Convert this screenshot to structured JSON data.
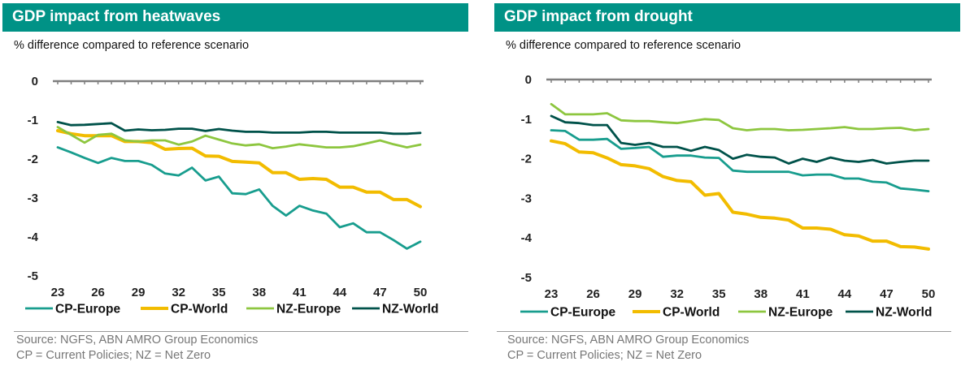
{
  "colors": {
    "title_bar": "#009286",
    "CP-Europe": "#189D8E",
    "CP-World": "#F2BC00",
    "NZ-Europe": "#8DC63F",
    "NZ-World": "#00524A"
  },
  "source_line": "Source: NGFS, ABN AMRO Group Economics",
  "abbrev_line": "CP = Current Policies; NZ = Net Zero",
  "chart_data": [
    {
      "type": "line",
      "title": "GDP impact from heatwaves",
      "subtitle": "% difference compared to reference scenario",
      "x": [
        23,
        24,
        25,
        26,
        27,
        28,
        29,
        30,
        31,
        32,
        33,
        34,
        35,
        36,
        37,
        38,
        39,
        40,
        41,
        42,
        43,
        44,
        45,
        46,
        47,
        48,
        49,
        50
      ],
      "x_ticks": [
        "23",
        "26",
        "29",
        "32",
        "35",
        "38",
        "41",
        "44",
        "47",
        "50"
      ],
      "y_ticks": [
        "0",
        "-1",
        "-2",
        "-3",
        "-4",
        "-5"
      ],
      "ylim": [
        -5,
        0
      ],
      "legend_position": "bottom",
      "series": [
        {
          "name": "CP-Europe",
          "values": [
            -1.7,
            -1.83,
            -1.97,
            -2.1,
            -1.97,
            -2.05,
            -2.05,
            -2.15,
            -2.37,
            -2.42,
            -2.22,
            -2.55,
            -2.45,
            -2.88,
            -2.9,
            -2.78,
            -3.2,
            -3.45,
            -3.2,
            -3.32,
            -3.4,
            -3.75,
            -3.65,
            -3.88,
            -3.88,
            -4.08,
            -4.3,
            -4.12
          ]
        },
        {
          "name": "CP-World",
          "values": [
            -1.27,
            -1.35,
            -1.4,
            -1.4,
            -1.4,
            -1.55,
            -1.55,
            -1.58,
            -1.75,
            -1.73,
            -1.72,
            -1.92,
            -1.93,
            -2.06,
            -2.08,
            -2.1,
            -2.35,
            -2.35,
            -2.52,
            -2.5,
            -2.52,
            -2.72,
            -2.72,
            -2.85,
            -2.85,
            -3.04,
            -3.04,
            -3.22
          ]
        },
        {
          "name": "NZ-Europe",
          "values": [
            -1.18,
            -1.38,
            -1.58,
            -1.38,
            -1.35,
            -1.52,
            -1.55,
            -1.52,
            -1.52,
            -1.63,
            -1.55,
            -1.4,
            -1.5,
            -1.6,
            -1.65,
            -1.62,
            -1.72,
            -1.68,
            -1.62,
            -1.66,
            -1.7,
            -1.7,
            -1.67,
            -1.6,
            -1.52,
            -1.62,
            -1.7,
            -1.63
          ]
        },
        {
          "name": "NZ-World",
          "values": [
            -1.05,
            -1.13,
            -1.12,
            -1.1,
            -1.08,
            -1.27,
            -1.24,
            -1.26,
            -1.25,
            -1.22,
            -1.22,
            -1.28,
            -1.23,
            -1.27,
            -1.3,
            -1.3,
            -1.32,
            -1.32,
            -1.32,
            -1.3,
            -1.3,
            -1.32,
            -1.32,
            -1.32,
            -1.32,
            -1.35,
            -1.35,
            -1.33
          ]
        }
      ]
    },
    {
      "type": "line",
      "title": "GDP impact from drought",
      "subtitle": "% difference compared to reference scenario",
      "x": [
        23,
        24,
        25,
        26,
        27,
        28,
        29,
        30,
        31,
        32,
        33,
        34,
        35,
        36,
        37,
        38,
        39,
        40,
        41,
        42,
        43,
        44,
        45,
        46,
        47,
        48,
        49,
        50
      ],
      "x_ticks": [
        "23",
        "26",
        "29",
        "32",
        "35",
        "38",
        "41",
        "44",
        "47",
        "50"
      ],
      "y_ticks": [
        "0",
        "-1",
        "-2",
        "-3",
        "-4",
        "-5"
      ],
      "ylim": [
        -5,
        0
      ],
      "legend_position": "bottom",
      "series": [
        {
          "name": "CP-Europe",
          "values": [
            -1.28,
            -1.3,
            -1.52,
            -1.52,
            -1.5,
            -1.75,
            -1.73,
            -1.7,
            -1.95,
            -1.92,
            -1.92,
            -1.97,
            -1.98,
            -2.3,
            -2.33,
            -2.33,
            -2.33,
            -2.33,
            -2.42,
            -2.4,
            -2.4,
            -2.5,
            -2.5,
            -2.58,
            -2.6,
            -2.75,
            -2.78,
            -2.82
          ]
        },
        {
          "name": "CP-World",
          "values": [
            -1.55,
            -1.62,
            -1.83,
            -1.85,
            -1.98,
            -2.15,
            -2.18,
            -2.25,
            -2.45,
            -2.55,
            -2.58,
            -2.92,
            -2.88,
            -3.35,
            -3.4,
            -3.48,
            -3.5,
            -3.55,
            -3.75,
            -3.75,
            -3.78,
            -3.92,
            -3.95,
            -4.08,
            -4.08,
            -4.22,
            -4.23,
            -4.28
          ]
        },
        {
          "name": "NZ-Europe",
          "values": [
            -0.62,
            -0.88,
            -0.88,
            -0.88,
            -0.85,
            -1.03,
            -1.05,
            -1.05,
            -1.08,
            -1.1,
            -1.05,
            -1.0,
            -1.02,
            -1.23,
            -1.28,
            -1.25,
            -1.25,
            -1.28,
            -1.27,
            -1.25,
            -1.23,
            -1.2,
            -1.25,
            -1.25,
            -1.23,
            -1.22,
            -1.28,
            -1.25
          ]
        },
        {
          "name": "NZ-World",
          "values": [
            -0.92,
            -1.08,
            -1.1,
            -1.15,
            -1.15,
            -1.6,
            -1.65,
            -1.6,
            -1.7,
            -1.7,
            -1.8,
            -1.7,
            -1.78,
            -2.0,
            -1.9,
            -1.95,
            -1.97,
            -2.12,
            -2.0,
            -2.08,
            -1.97,
            -2.05,
            -2.08,
            -2.03,
            -2.12,
            -2.08,
            -2.05,
            -2.05
          ]
        }
      ]
    }
  ]
}
